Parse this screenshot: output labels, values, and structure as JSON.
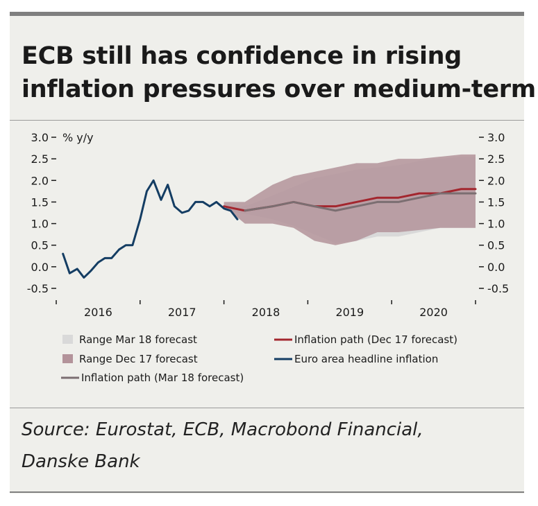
{
  "header": {
    "title_line1": "ECB still has confidence in rising",
    "title_line2": "inflation pressures over medium-term"
  },
  "source": {
    "line1": "Source: Eurostat, ECB, Macrobond Financial,",
    "line2": "Danske Bank"
  },
  "chart_data": {
    "type": "line",
    "title": "ECB still has confidence in rising inflation pressures over medium-term",
    "ylabel": "% y/y",
    "ylim": [
      -0.5,
      3.0
    ],
    "y_ticks": [
      3.0,
      2.5,
      2.0,
      1.5,
      1.0,
      0.5,
      0.0,
      -0.5
    ],
    "y_tick_labels": [
      "3.0",
      "2.5",
      "2.0",
      "1.5",
      "1.0",
      "0.5",
      "0.0",
      "-0.5"
    ],
    "xlim": [
      2015.92,
      2020.92
    ],
    "x_ticks": [
      2015.92,
      2016.92,
      2017.92,
      2018.92,
      2019.92,
      2020.92
    ],
    "x_labels": [
      {
        "label": "2016",
        "x": 2016.42
      },
      {
        "label": "2017",
        "x": 2017.42
      },
      {
        "label": "2018",
        "x": 2018.42
      },
      {
        "label": "2019",
        "x": 2019.42
      },
      {
        "label": "2020",
        "x": 2020.42
      }
    ],
    "series": [
      {
        "name": "Range Mar 18 forecast",
        "kind": "band",
        "color": "#d9d9d9",
        "x": [
          2017.92,
          2018.25,
          2018.5,
          2018.75,
          2019.0,
          2019.25,
          2019.5,
          2019.75,
          2020.0,
          2020.25,
          2020.5,
          2020.75,
          2020.92
        ],
        "lower": [
          1.3,
          1.2,
          1.1,
          0.95,
          0.75,
          0.55,
          0.6,
          0.7,
          0.7,
          0.8,
          0.9,
          0.9,
          0.9
        ],
        "upper": [
          1.3,
          1.45,
          1.65,
          1.85,
          2.05,
          2.15,
          2.25,
          2.3,
          2.35,
          2.45,
          2.5,
          2.55,
          2.55
        ]
      },
      {
        "name": "Range Dec 17 forecast",
        "kind": "band",
        "color": "#b3939a",
        "x": [
          2017.92,
          2018.17,
          2018.5,
          2018.75,
          2019.0,
          2019.25,
          2019.5,
          2019.75,
          2020.0,
          2020.25,
          2020.5,
          2020.75,
          2020.92
        ],
        "lower": [
          1.4,
          1.0,
          1.0,
          0.9,
          0.6,
          0.5,
          0.6,
          0.8,
          0.8,
          0.85,
          0.9,
          0.9,
          0.9
        ],
        "upper": [
          1.5,
          1.5,
          1.9,
          2.1,
          2.2,
          2.3,
          2.4,
          2.4,
          2.5,
          2.5,
          2.55,
          2.6,
          2.6
        ]
      },
      {
        "name": "Inflation path (Dec 17 forecast)",
        "kind": "line",
        "color": "#a3262e",
        "x": [
          2017.92,
          2018.17,
          2018.5,
          2018.75,
          2019.0,
          2019.25,
          2019.5,
          2019.75,
          2020.0,
          2020.25,
          2020.5,
          2020.75,
          2020.92
        ],
        "values": [
          1.4,
          1.3,
          1.4,
          1.5,
          1.4,
          1.4,
          1.5,
          1.6,
          1.6,
          1.7,
          1.7,
          1.8,
          1.8
        ]
      },
      {
        "name": "Euro area headline inflation",
        "kind": "line",
        "color": "#143d63",
        "x": [
          2016.0,
          2016.08,
          2016.17,
          2016.25,
          2016.33,
          2016.42,
          2016.5,
          2016.58,
          2016.67,
          2016.75,
          2016.83,
          2016.92,
          2017.0,
          2017.08,
          2017.17,
          2017.25,
          2017.33,
          2017.42,
          2017.5,
          2017.58,
          2017.67,
          2017.75,
          2017.83,
          2017.92,
          2018.0,
          2018.08
        ],
        "values": [
          0.3,
          -0.15,
          -0.05,
          -0.25,
          -0.1,
          0.1,
          0.2,
          0.2,
          0.4,
          0.5,
          0.5,
          1.1,
          1.75,
          2.0,
          1.55,
          1.9,
          1.4,
          1.25,
          1.3,
          1.5,
          1.5,
          1.4,
          1.5,
          1.35,
          1.3,
          1.1
        ]
      },
      {
        "name": "Inflation path (Mar 18 forecast)",
        "kind": "line",
        "color": "#7b6e71",
        "x": [
          2018.17,
          2018.5,
          2018.75,
          2019.0,
          2019.25,
          2019.5,
          2019.75,
          2020.0,
          2020.25,
          2020.5,
          2020.75,
          2020.92
        ],
        "values": [
          1.3,
          1.4,
          1.5,
          1.4,
          1.3,
          1.4,
          1.5,
          1.5,
          1.6,
          1.7,
          1.7,
          1.7
        ]
      }
    ],
    "legend": {
      "placement": "bottom",
      "items": [
        {
          "label": "Range Mar 18 forecast",
          "swatch": "box",
          "color": "#d9d9d9"
        },
        {
          "label": "Inflation path (Dec 17 forecast)",
          "swatch": "line",
          "color": "#a3262e"
        },
        {
          "label": "Range Dec 17 forecast",
          "swatch": "box",
          "color": "#b3939a"
        },
        {
          "label": "Euro area headline inflation",
          "swatch": "line",
          "color": "#143d63"
        },
        {
          "label": "Inflation path (Mar 18 forecast)",
          "swatch": "line",
          "color": "#7b6e71"
        }
      ]
    }
  }
}
